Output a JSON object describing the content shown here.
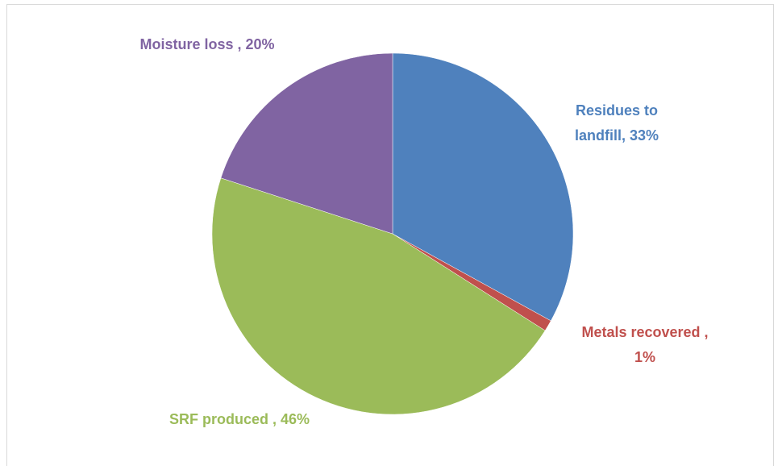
{
  "chart_data": {
    "type": "pie",
    "categories": [
      "Residues to landfill,",
      "Metals recovered ,",
      "SRF produced ,",
      "Moisture loss ,"
    ],
    "values": [
      33,
      1,
      46,
      20
    ],
    "value_labels": [
      "33%",
      "1%",
      "46%",
      "20%"
    ],
    "colors": [
      "#4f81bd",
      "#c0504d",
      "#9bbb59",
      "#8064a2"
    ],
    "start_angle": 0,
    "direction": "clockwise"
  }
}
